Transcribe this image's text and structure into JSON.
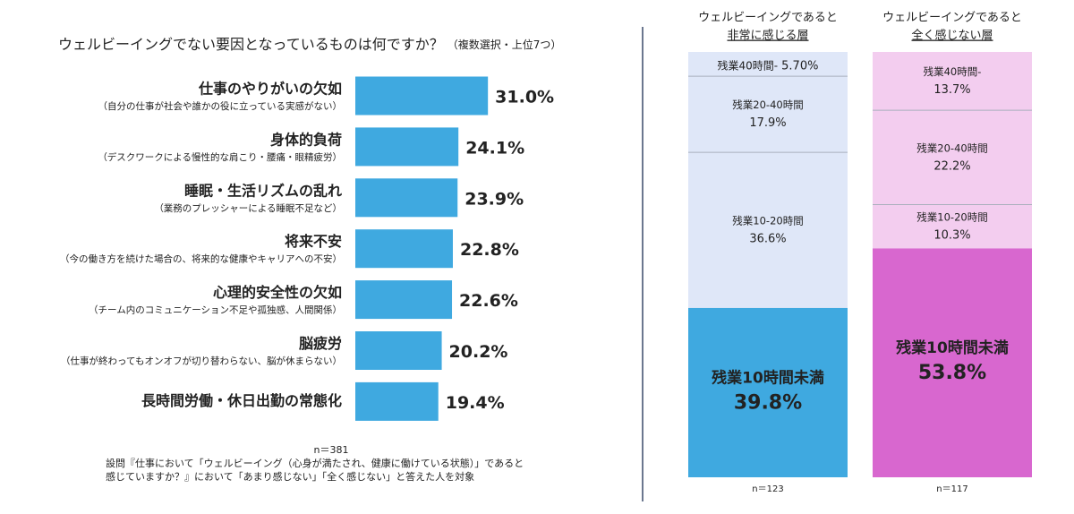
{
  "chart_data": [
    {
      "type": "hbar",
      "title": "ウェルビーイングでない要因となっているものは何ですか？",
      "subtitle": "（複数選択・上位7つ）",
      "categories": [
        "仕事のやりがいの欠如",
        "身体的負荷",
        "睡眠・生活リズムの乱れ",
        "将来不安",
        "心理的安全性の欠如",
        "脳疲労",
        "長時間労働・休日出勤の常態化"
      ],
      "descriptions": [
        "（自分の仕事が社会や誰かの役に立っている実感がない）",
        "（デスクワークによる慢性的な肩こり・腰痛・眼精疲労）",
        "（業務のプレッシャーによる睡眠不足など）",
        "（今の働き方を続けた場合の、将来的な健康やキャリアへの不安）",
        "（チーム内のコミュニケーション不足や孤独感、人間関係）",
        "（仕事が終わってもオンオフが切り替わらない、脳が休まらない）",
        null
      ],
      "values": [
        31.0,
        24.1,
        23.9,
        22.8,
        22.6,
        20.2,
        19.4
      ],
      "value_labels": [
        "31.0%",
        "24.1%",
        "23.9%",
        "22.8%",
        "22.6%",
        "20.2%",
        "19.4%"
      ],
      "color": "#3fa9e0",
      "sample": "n＝381",
      "footnote": [
        "設問『仕事において「ウェルビーイング（心身が満たされ、健康に働けている状態）」であると",
        "感じていますか？』において「あまり感じない」「全く感じない」と答えた人を対象"
      ]
    },
    {
      "type": "stacked_column",
      "title": [
        "ウェルビーイングであると",
        "非常に感じる層"
      ],
      "series": [
        {
          "name": "残業40時間-",
          "color": "#dfe7f8",
          "values": [
            5.7
          ],
          "value_labels": [
            "5.70%"
          ]
        },
        {
          "name": "残業20-40時間",
          "color": "#dfe7f8",
          "values": [
            17.9
          ],
          "value_labels": [
            "17.9%"
          ]
        },
        {
          "name": "残業10-20時間",
          "color": "#dfe7f8",
          "values": [
            36.6
          ],
          "value_labels": [
            "36.6%"
          ]
        },
        {
          "name": "残業10時間未満",
          "color": "#3fa9e0",
          "values": [
            39.8
          ],
          "value_labels": [
            "39.8%"
          ]
        }
      ],
      "sample": "n＝123"
    },
    {
      "type": "stacked_column",
      "title": [
        "ウェルビーイングであると",
        "全く感じない層"
      ],
      "series": [
        {
          "name": "残業40時間-",
          "color": "#f3cdef",
          "values": [
            13.7
          ],
          "value_labels": [
            "13.7%"
          ]
        },
        {
          "name": "残業20-40時間",
          "color": "#f3cdef",
          "values": [
            22.2
          ],
          "value_labels": [
            "22.2%"
          ]
        },
        {
          "name": "残業10-20時間",
          "color": "#f3cdef",
          "values": [
            10.3
          ],
          "value_labels": [
            "10.3%"
          ]
        },
        {
          "name": "残業10時間未満",
          "color": "#d867cf",
          "values": [
            53.8
          ],
          "value_labels": [
            "53.8%"
          ]
        }
      ],
      "sample": "n＝117"
    }
  ]
}
